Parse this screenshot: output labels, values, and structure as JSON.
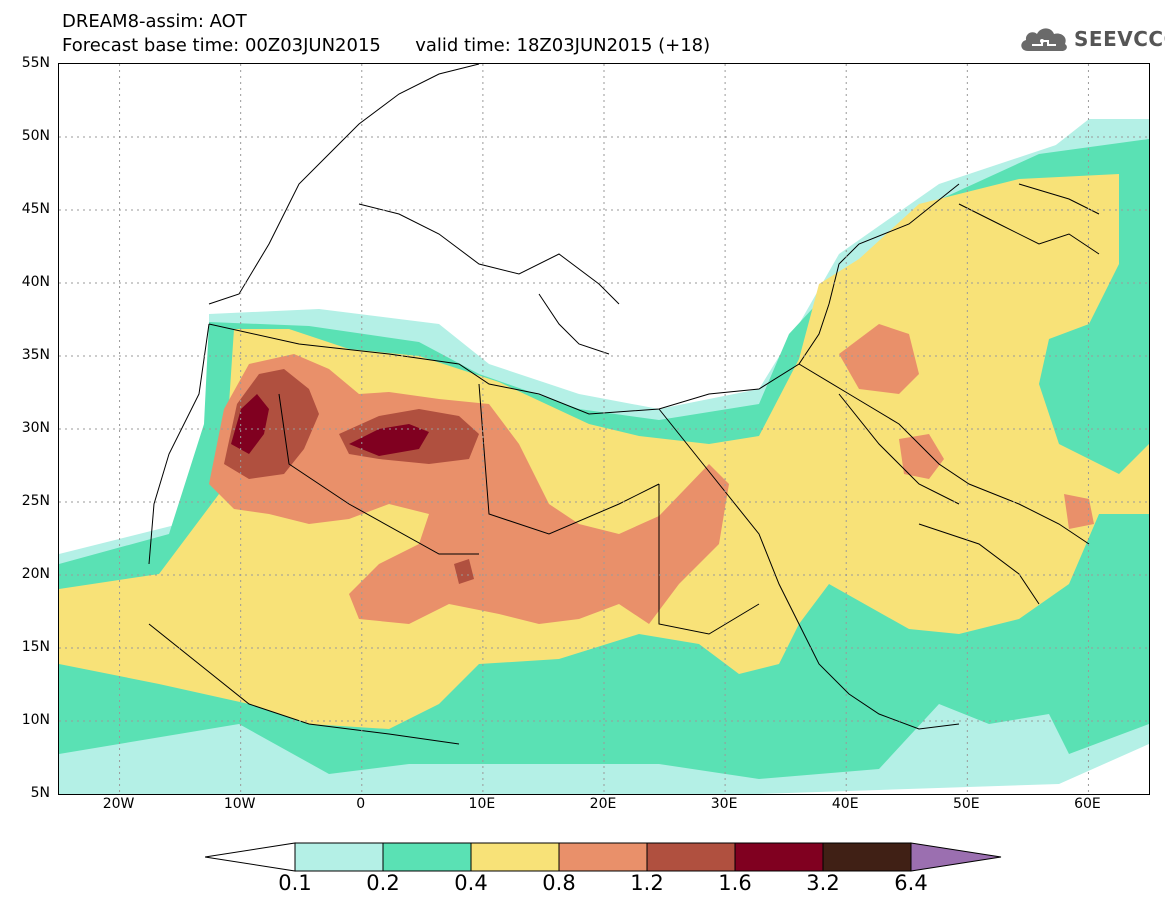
{
  "header": {
    "line1": "DREAM8-assim: AOT",
    "base_time_label": "Forecast base time: 00Z03JUN2015",
    "valid_time_label": "valid time: 18Z03JUN2015 (+18)"
  },
  "logo": {
    "icon": "cloud-icon",
    "text": "SEEVCCC",
    "color": "#555555"
  },
  "map": {
    "projection": "lat-lon",
    "lon_range": [
      -25,
      65
    ],
    "lat_range": [
      5,
      55
    ],
    "lat_ticks": [
      "55N",
      "50N",
      "45N",
      "40N",
      "35N",
      "30N",
      "25N",
      "20N",
      "15N",
      "10N",
      "5N"
    ],
    "lon_ticks": [
      "20W",
      "10W",
      "0",
      "10E",
      "20E",
      "30E",
      "40E",
      "50E",
      "60E"
    ],
    "grid": true,
    "variable": "AOT"
  },
  "colorbar": {
    "labels": [
      "0.1",
      "0.2",
      "0.4",
      "0.8",
      "1.2",
      "1.6",
      "3.2",
      "6.4"
    ],
    "colors": [
      "#ffffff",
      "#b4f0e6",
      "#5ae1b4",
      "#f8e278",
      "#e9906a",
      "#b0503f",
      "#800020",
      "#402015",
      "#9b6fb0"
    ]
  }
}
